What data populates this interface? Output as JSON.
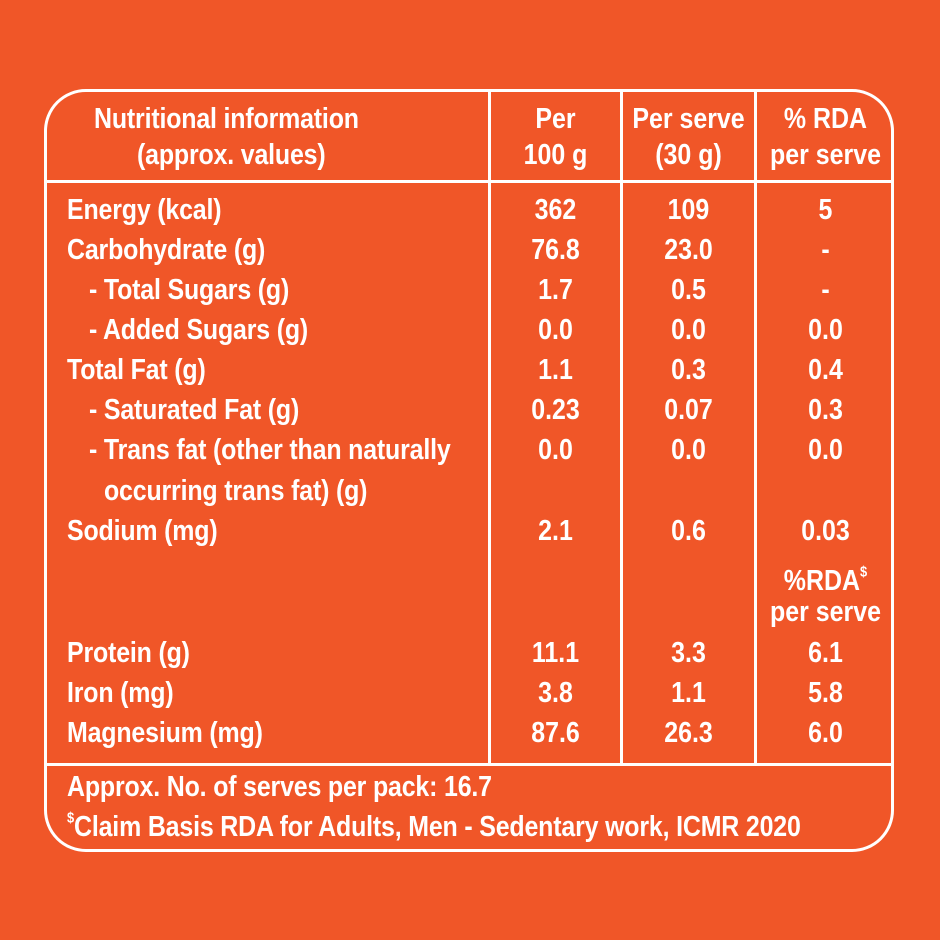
{
  "table": {
    "header": {
      "col_label": [
        "Nutritional information",
        "(approx. values)"
      ],
      "col_per100": [
        "Per",
        "100 g"
      ],
      "col_serve": [
        "Per serve",
        "(30 g)"
      ],
      "col_rda": [
        "% RDA",
        "per serve"
      ]
    },
    "rows": [
      {
        "label": "Energy (kcal)",
        "per100": "362",
        "serve": "109",
        "rda": "5"
      },
      {
        "label": "Carbohydrate (g)",
        "per100": "76.8",
        "serve": "23.0",
        "rda": "-"
      },
      {
        "label": "- Total Sugars (g)",
        "per100": "1.7",
        "serve": "0.5",
        "rda": "-"
      },
      {
        "label": "- Added Sugars (g)",
        "per100": "0.0",
        "serve": "0.0",
        "rda": "0.0"
      },
      {
        "label": "Total Fat (g)",
        "per100": "1.1",
        "serve": "0.3",
        "rda": "0.4"
      },
      {
        "label": "- Saturated Fat (g)",
        "per100": "0.23",
        "serve": "0.07",
        "rda": "0.3"
      },
      {
        "label": "- Trans fat (other than naturally",
        "label_cont": "occurring trans fat) (g)",
        "per100": "0.0",
        "serve": "0.0",
        "rda": "0.0"
      },
      {
        "label": "Sodium (mg)",
        "per100": "2.1",
        "serve": "0.6",
        "rda": "0.03"
      }
    ],
    "subheader": {
      "rda_title": "%RDA",
      "rda_mark": "$",
      "rda_sub": "per serve"
    },
    "rows2": [
      {
        "label": "Protein (g)",
        "per100": "11.1",
        "serve": "3.3",
        "rda": "6.1"
      },
      {
        "label": "Iron (mg)",
        "per100": "3.8",
        "serve": "1.1",
        "rda": "5.8"
      },
      {
        "label": "Magnesium (mg)",
        "per100": "87.6",
        "serve": "26.3",
        "rda": "6.0"
      }
    ]
  },
  "footer": {
    "serves": "Approx. No. of serves per pack: 16.7",
    "claim_mark": "$",
    "claim": "Claim Basis RDA for Adults, Men - Sedentary work, ICMR 2020"
  }
}
